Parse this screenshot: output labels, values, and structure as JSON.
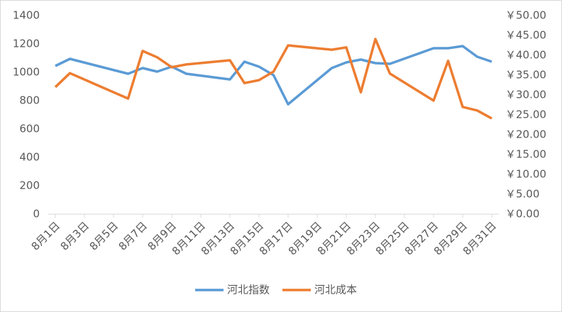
{
  "chart_data": {
    "type": "line",
    "x": [
      "8月1日",
      "8月2日",
      "8月6日",
      "8月7日",
      "8月8日",
      "8月9日",
      "8月10日",
      "8月13日",
      "8月14日",
      "8月15日",
      "8月16日",
      "8月17日",
      "8月20日",
      "8月21日",
      "8月22日",
      "8月23日",
      "8月24日",
      "8月27日",
      "8月28日",
      "8月29日",
      "8月30日",
      "8月31日"
    ],
    "xticks": [
      "8月1日",
      "8月3日",
      "8月5日",
      "8月7日",
      "8月9日",
      "8月11日",
      "8月13日",
      "8月15日",
      "8月17日",
      "8月19日",
      "8月21日",
      "8月23日",
      "8月25日",
      "8月27日",
      "8月29日",
      "8月31日"
    ],
    "series": [
      {
        "name": "河北指数",
        "color": "#5b9bd5",
        "values": [
          1045,
          1095,
          990,
          1030,
          1005,
          1040,
          990,
          950,
          1075,
          1040,
          980,
          775,
          1030,
          1070,
          1090,
          1065,
          1060,
          1170,
          1170,
          1185,
          1110,
          1075
        ]
      },
      {
        "name": "河北成本",
        "color": "#ed7d31",
        "axis": "y2",
        "values": [
          32,
          35.5,
          29.1,
          41.1,
          39.5,
          37,
          37.7,
          38.75,
          33,
          33.75,
          35.9,
          42.5,
          41.4,
          42,
          30.7,
          44.1,
          35.4,
          28.6,
          38.6,
          27,
          26.1,
          24.1
        ]
      }
    ],
    "ylim": [
      0,
      1400
    ],
    "yticks": [
      0,
      200,
      400,
      600,
      800,
      1000,
      1200,
      1400
    ],
    "y2lim": [
      0,
      50
    ],
    "y2ticks": [
      {
        "value": 0,
        "label": "￥0.00"
      },
      {
        "value": 5,
        "label": "￥5.00"
      },
      {
        "value": 10,
        "label": "￥10.00"
      },
      {
        "value": 15,
        "label": "￥15.00"
      },
      {
        "value": 20,
        "label": "￥20.00"
      },
      {
        "value": 25,
        "label": "￥25.00"
      },
      {
        "value": 30,
        "label": "￥30.00"
      },
      {
        "value": 35,
        "label": "￥35.00"
      },
      {
        "value": 40,
        "label": "￥40.00"
      },
      {
        "value": 45,
        "label": "￥45.00"
      },
      {
        "value": 50,
        "label": "￥50.00"
      }
    ],
    "legend": "bottom"
  }
}
